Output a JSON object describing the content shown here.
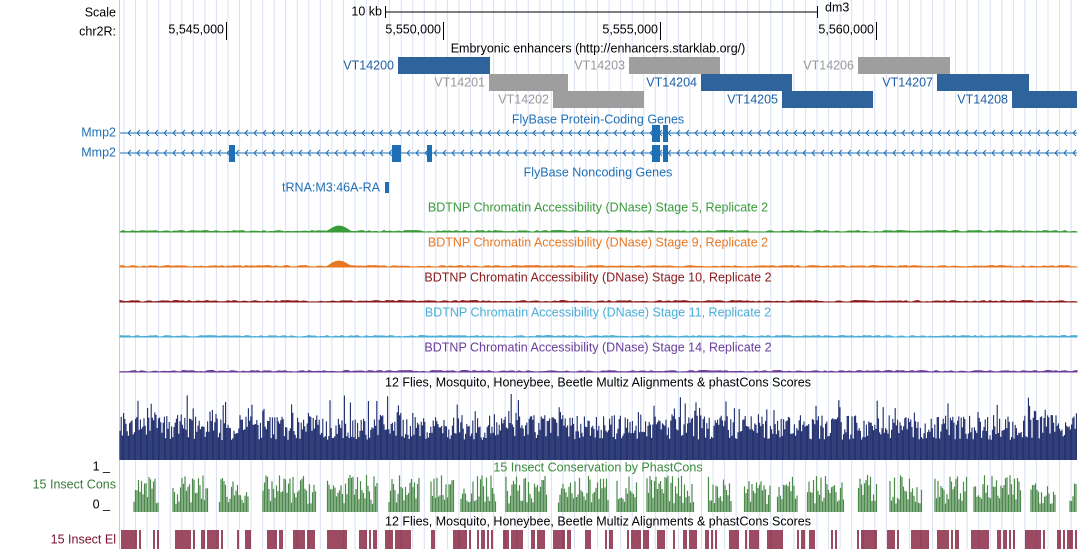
{
  "header": {
    "scale_label": "Scale",
    "chrom_label": "chr2R:",
    "scale_bar_label": "10 kb",
    "assembly": "dm3",
    "positions": [
      "5,545,000",
      "5,550,000",
      "5,555,000",
      "5,560,000"
    ]
  },
  "enhancers": {
    "title": "Embryonic enhancers (http://enhancers.starklab.org/)",
    "items": [
      "VT14200",
      "VT14201",
      "VT14202",
      "VT14203",
      "VT14204",
      "VT14205",
      "VT14206",
      "VT14207",
      "VT14208"
    ]
  },
  "protein_genes": {
    "title": "FlyBase Protein-Coding Genes",
    "genes": [
      "Mmp2",
      "Mmp2"
    ]
  },
  "noncoding_genes": {
    "title": "FlyBase Noncoding Genes",
    "genes": [
      "tRNA:M3:46A-RA"
    ]
  },
  "dnase_tracks": [
    "BDTNP Chromatin Accessibility (DNase) Stage 5, Replicate 2",
    "BDTNP Chromatin Accessibility (DNase) Stage 9, Replicate 2",
    "BDTNP Chromatin Accessibility (DNase) Stage 10, Replicate 2",
    "BDTNP Chromatin Accessibility (DNase) Stage 11, Replicate 2",
    "BDTNP Chromatin Accessibility (DNase) Stage 14, Replicate 2"
  ],
  "multiz": {
    "title": "12 Flies, Mosquito, Honeybee, Beetle Multiz Alignments & phastCons Scores"
  },
  "cons": {
    "title": "15 Insect Conservation by PhastCons",
    "label": "15 Insect Cons",
    "max_label": "1 _",
    "min_label": "0 _"
  },
  "elements": {
    "title": "12 Flies, Mosquito, Honeybee, Beetle Multiz Alignments & phastCons Scores",
    "label": "15 Insect El"
  }
}
